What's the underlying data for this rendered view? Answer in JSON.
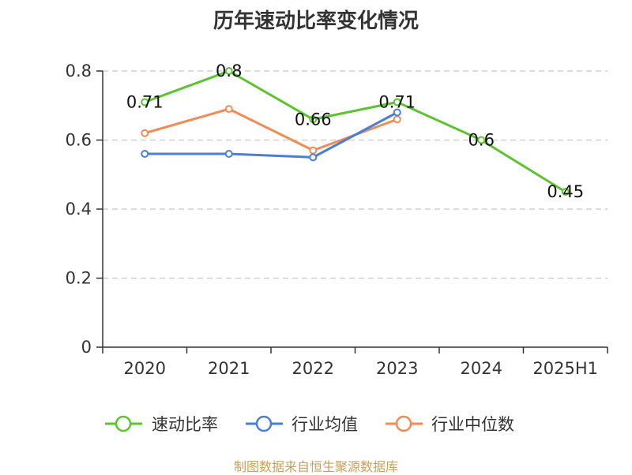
{
  "chart_data": {
    "type": "line",
    "title": "历年速动比率变化情况",
    "categories": [
      "2020",
      "2021",
      "2022",
      "2023",
      "2024",
      "2025H1"
    ],
    "ylim": [
      0,
      0.8
    ],
    "yticks": [
      "0",
      "0.2",
      "0.4",
      "0.6",
      "0.8"
    ],
    "grid": true,
    "legend_position": "bottom",
    "series": [
      {
        "name": "速动比率",
        "color": "#5bc42e",
        "values": [
          0.71,
          0.8,
          0.66,
          0.71,
          0.6,
          0.45
        ],
        "labels": [
          "0.71",
          "0.8",
          "0.66",
          "0.71",
          "0.6",
          "0.45"
        ]
      },
      {
        "name": "行业均值",
        "color": "#4a7fd6",
        "values": [
          0.56,
          0.56,
          0.55,
          0.68,
          null,
          null
        ]
      },
      {
        "name": "行业中位数",
        "color": "#f28c55",
        "values": [
          0.62,
          0.69,
          0.57,
          0.66,
          null,
          null
        ]
      }
    ]
  },
  "source_note": "制图数据来自恒生聚源数据库"
}
